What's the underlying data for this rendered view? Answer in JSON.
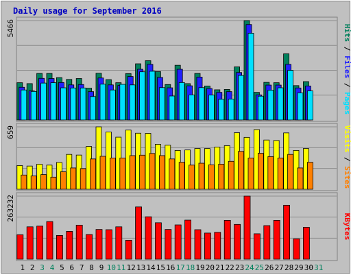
{
  "chart_data": {
    "type": "bar",
    "title": "Daily usage for September 2016",
    "days": [
      "1",
      "2",
      "3",
      "4",
      "5",
      "6",
      "7",
      "8",
      "9",
      "10",
      "11",
      "12",
      "13",
      "14",
      "15",
      "16",
      "17",
      "18",
      "19",
      "20",
      "21",
      "22",
      "23",
      "24",
      "25",
      "26",
      "27",
      "28",
      "29",
      "30",
      "31"
    ],
    "weekend_days": [
      "3",
      "4",
      "10",
      "11",
      "17",
      "18",
      "24",
      "25",
      "31"
    ],
    "panels": [
      {
        "id": "hits",
        "max_label": "5466",
        "max": 5466,
        "side_label": [
          "Pages",
          "Files",
          "Hits"
        ],
        "series": [
          {
            "name": "Hits",
            "color": "#00805c",
            "values": [
              2050,
              2000,
              2560,
              2560,
              2330,
              2230,
              2280,
              1750,
              2570,
              2220,
              2050,
              2550,
              3090,
              3260,
              2660,
              1950,
              3010,
              2000,
              2560,
              1870,
              1660,
              1680,
              2920,
              5466,
              1520,
              2070,
              2050,
              3640,
              1890,
              2110,
              0
            ]
          },
          {
            "name": "Files",
            "color": "#2020ff",
            "values": [
              1800,
              1600,
              2290,
              2280,
              2060,
              1930,
              1950,
              1560,
              2310,
              1930,
              1900,
              2390,
              2790,
              3060,
              2340,
              1770,
              2790,
              1880,
              2360,
              1730,
              1520,
              1560,
              2610,
              5250,
              1380,
              1920,
              1920,
              3060,
              1760,
              1870,
              0
            ]
          },
          {
            "name": "Pages",
            "color": "#00e0ff",
            "values": [
              1650,
              1570,
              2030,
              2050,
              1770,
              1760,
              1760,
              1290,
              1970,
              1650,
              1960,
              1930,
              2650,
              2680,
              1780,
              1320,
              2060,
              1380,
              1780,
              1370,
              1140,
              1150,
              2450,
              4770,
              1310,
              1640,
              1770,
              2730,
              1490,
              1600,
              0
            ]
          }
        ]
      },
      {
        "id": "visits",
        "max_label": "659",
        "max": 659,
        "side_label": [
          "Sites",
          "Visits"
        ],
        "series": [
          {
            "name": "Visits",
            "color": "#ffff00",
            "values": [
              250,
              245,
              265,
              255,
              283,
              368,
              361,
              452,
              659,
              605,
              550,
              625,
              592,
              590,
              475,
              465,
              410,
              415,
              430,
              430,
              445,
              460,
              597,
              548,
              630,
              520,
              515,
              595,
              410,
              430,
              0
            ]
          },
          {
            "name": "Sites",
            "color": "#ff8000",
            "values": [
              150,
              140,
              155,
              128,
              185,
              225,
              218,
              320,
              348,
              330,
              330,
              355,
              360,
              378,
              355,
              320,
              285,
              255,
              275,
              258,
              265,
              295,
              400,
              330,
              380,
              345,
              330,
              368,
              225,
              285,
              0
            ]
          }
        ]
      },
      {
        "id": "kbytes",
        "max_label": "263232",
        "max": 263232,
        "side_label": [
          "KBytes"
        ],
        "series": [
          {
            "name": "KBytes",
            "color": "#ff0000",
            "values": [
              102000,
              135000,
              138000,
              157000,
              99000,
              116000,
              142000,
              103000,
              124000,
              123000,
              135000,
              79000,
              218000,
              177000,
              152000,
              124000,
              143000,
              163000,
              123000,
              109000,
              112000,
              162000,
              145000,
              263232,
              106000,
              140000,
              162000,
              225000,
              85000,
              133000,
              0
            ]
          }
        ]
      }
    ]
  }
}
